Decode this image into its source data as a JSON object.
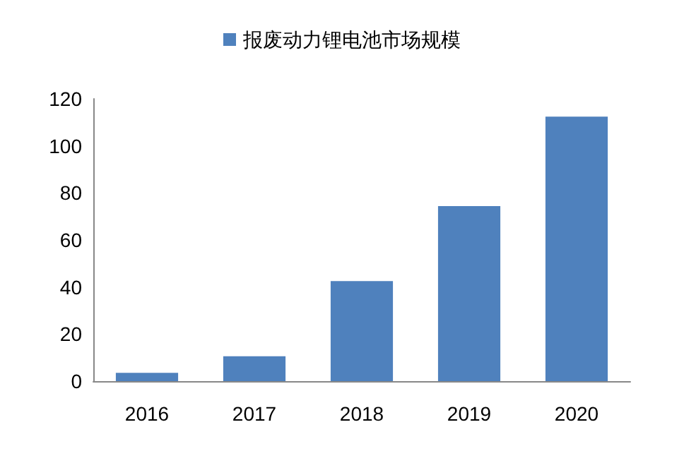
{
  "chart_data": {
    "type": "bar",
    "categories": [
      "2016",
      "2017",
      "2018",
      "2019",
      "2020"
    ],
    "series": [
      {
        "name": "报废动力锂电池市场规模",
        "color": "#4f81bd",
        "values": [
          3.5,
          10.6,
          42.5,
          74.4,
          112.4
        ]
      }
    ],
    "ylim": [
      0,
      120
    ],
    "yticks": [
      0,
      20,
      40,
      60,
      80,
      100,
      120
    ],
    "grid": false,
    "legend": "top"
  }
}
